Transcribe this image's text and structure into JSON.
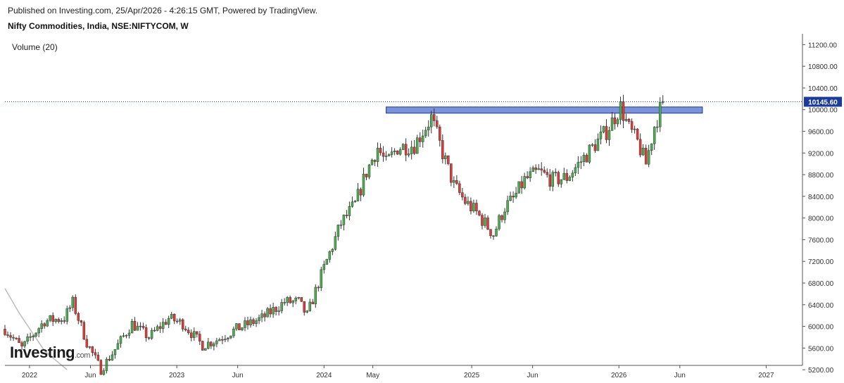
{
  "header": {
    "published": "Published on Investing.com, 25/Apr/2026 - 4:26:15 GMT, Powered by TradingView.",
    "symbol": "Nifty Commodities, India, NSE:NIFTYCOM, W"
  },
  "indicator": {
    "volume_label": "Volume (20)"
  },
  "watermark": {
    "brand": "Investing",
    "suffix": ".com"
  },
  "colors": {
    "up": "#4caf50",
    "down": "#e53935",
    "wick": "#333333",
    "zone_fill": "#7b93d6",
    "zone_stroke": "#1a3a9c",
    "price_line": "#1a3a9c",
    "price_badge": "#1a3a9c",
    "ma_line": "#bdbdbd"
  },
  "chart_data": {
    "type": "candlestick",
    "title": "Nifty Commodities, India, NSE:NIFTYCOM, W",
    "ylim": [
      5280,
      11400
    ],
    "y_ticks": [
      "11200.00",
      "10800.00",
      "10400.00",
      "10000.00",
      "9600.00",
      "9200.00",
      "8800.00",
      "8400.00",
      "8000.00",
      "7600.00",
      "7200.00",
      "6800.00",
      "6400.00",
      "6000.00",
      "5600.00",
      "5200.00"
    ],
    "x_ticks": [
      "2022",
      "Jun",
      "2023",
      "Jun",
      "2024",
      "May",
      "2025",
      "Jun",
      "2026",
      "Jun",
      "2027"
    ],
    "x_tick_dates": [
      "2022-01-01",
      "2022-06-01",
      "2023-01-01",
      "2023-06-01",
      "2024-01-01",
      "2024-05-01",
      "2025-01-01",
      "2025-06-01",
      "2026-01-01",
      "2026-06-01",
      "2027-01-01"
    ],
    "x_range": [
      "2021-11-01",
      "2027-04-01"
    ],
    "last_price": 10145.6,
    "last_price_label": "10145.60",
    "zone": {
      "start": "2024-06-03",
      "end": "2026-07-27",
      "low": 9935,
      "high": 10050
    },
    "ma_segment": [
      {
        "date": "2021-11-01",
        "value": 6700
      },
      {
        "date": "2021-12-06",
        "value": 6250
      },
      {
        "date": "2022-02-07",
        "value": 5550
      },
      {
        "date": "2022-04-04",
        "value": 5200
      }
    ],
    "closes": [
      {
        "date": "2021-11-01",
        "close": 5950
      },
      {
        "date": "2021-12-13",
        "close": 5600
      },
      {
        "date": "2022-02-07",
        "close": 6100
      },
      {
        "date": "2022-03-28",
        "close": 6150
      },
      {
        "date": "2022-04-18",
        "close": 6440
      },
      {
        "date": "2022-05-23",
        "close": 5700
      },
      {
        "date": "2022-06-27",
        "close": 5200
      },
      {
        "date": "2022-07-25",
        "close": 5500
      },
      {
        "date": "2022-09-12",
        "close": 6050
      },
      {
        "date": "2022-10-24",
        "close": 5800
      },
      {
        "date": "2022-12-12",
        "close": 6150
      },
      {
        "date": "2023-01-16",
        "close": 6050
      },
      {
        "date": "2023-03-06",
        "close": 5650
      },
      {
        "date": "2023-04-10",
        "close": 5750
      },
      {
        "date": "2023-05-29",
        "close": 5950
      },
      {
        "date": "2023-07-31",
        "close": 6150
      },
      {
        "date": "2023-09-25",
        "close": 6450
      },
      {
        "date": "2023-10-30",
        "close": 6450
      },
      {
        "date": "2023-11-20",
        "close": 6200
      },
      {
        "date": "2023-12-18",
        "close": 6800
      },
      {
        "date": "2024-01-15",
        "close": 7350
      },
      {
        "date": "2024-02-12",
        "close": 7900
      },
      {
        "date": "2024-03-18",
        "close": 8250
      },
      {
        "date": "2024-04-15",
        "close": 8850
      },
      {
        "date": "2024-05-13",
        "close": 9300
      },
      {
        "date": "2024-06-03",
        "close": 9000
      },
      {
        "date": "2024-07-01",
        "close": 9300
      },
      {
        "date": "2024-08-12",
        "close": 9350
      },
      {
        "date": "2024-09-23",
        "close": 9850
      },
      {
        "date": "2024-10-21",
        "close": 9200
      },
      {
        "date": "2024-11-18",
        "close": 8600
      },
      {
        "date": "2024-12-16",
        "close": 8300
      },
      {
        "date": "2025-01-13",
        "close": 8100
      },
      {
        "date": "2025-02-24",
        "close": 7700
      },
      {
        "date": "2025-03-24",
        "close": 8200
      },
      {
        "date": "2025-04-14",
        "close": 8350
      },
      {
        "date": "2025-05-12",
        "close": 8700
      },
      {
        "date": "2025-06-16",
        "close": 8850
      },
      {
        "date": "2025-07-21",
        "close": 8700
      },
      {
        "date": "2025-08-25",
        "close": 8750
      },
      {
        "date": "2025-09-29",
        "close": 9050
      },
      {
        "date": "2025-10-27",
        "close": 9300
      },
      {
        "date": "2025-12-01",
        "close": 9600
      },
      {
        "date": "2026-01-05",
        "close": 10050
      },
      {
        "date": "2026-01-26",
        "close": 9650
      },
      {
        "date": "2026-02-16",
        "close": 9400
      },
      {
        "date": "2026-03-09",
        "close": 9000
      },
      {
        "date": "2026-03-30",
        "close": 9700
      },
      {
        "date": "2026-04-20",
        "close": 10145.6
      }
    ]
  }
}
